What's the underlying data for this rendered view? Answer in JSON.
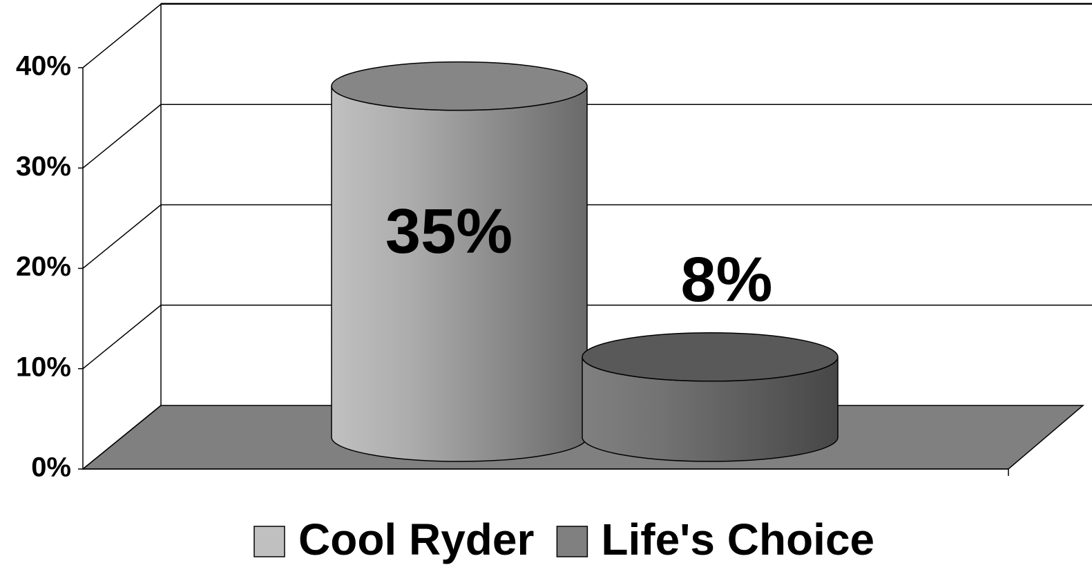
{
  "chart_data": {
    "type": "cylinder",
    "categories": [
      null
    ],
    "series": [
      {
        "name": "Cool Ryder",
        "color": "#c0c0c0",
        "values": [
          35
        ],
        "value_labels": [
          "35%"
        ]
      },
      {
        "name": "Life's Choice",
        "color": "#808080",
        "values": [
          8
        ],
        "value_labels": [
          "8%"
        ]
      }
    ],
    "ylim": [
      0,
      40
    ],
    "yticks": [
      {
        "value": 0,
        "label": "0%"
      },
      {
        "value": 10,
        "label": "10%"
      },
      {
        "value": 20,
        "label": "20%"
      },
      {
        "value": 30,
        "label": "30%"
      },
      {
        "value": 40,
        "label": "40%"
      }
    ],
    "grid": true,
    "legend": "bottom"
  }
}
